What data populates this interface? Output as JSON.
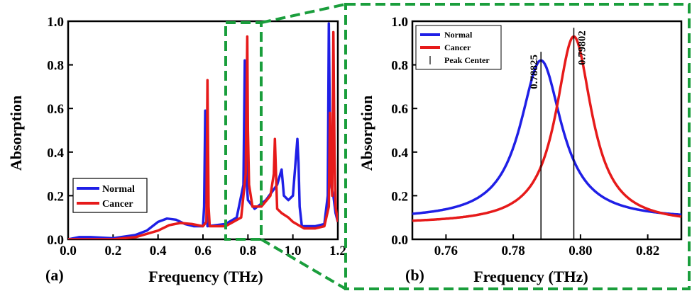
{
  "colors": {
    "normal": "#1f1fe6",
    "cancer": "#e61a1a",
    "frame": "#1a9e3c"
  },
  "chart_data": [
    {
      "panel_label": "(a)",
      "type": "line",
      "xlabel": "Frequency (THz)",
      "ylabel": "Absorption",
      "xlim": [
        0.0,
        1.2
      ],
      "ylim": [
        0.0,
        1.0
      ],
      "xticks": [
        "0.0",
        "0.2",
        "0.4",
        "0.6",
        "0.8",
        "1.0",
        "1.2"
      ],
      "yticks": [
        "0.0",
        "0.2",
        "0.4",
        "0.6",
        "0.8",
        "1.0"
      ],
      "legend": {
        "position": "lower-left",
        "entries": [
          "Normal",
          "Cancer"
        ]
      },
      "series": [
        {
          "name": "Normal",
          "x": [
            0.0,
            0.05,
            0.1,
            0.2,
            0.3,
            0.35,
            0.4,
            0.44,
            0.48,
            0.52,
            0.56,
            0.6,
            0.605,
            0.61,
            0.615,
            0.62,
            0.7,
            0.75,
            0.78,
            0.786,
            0.79,
            0.795,
            0.8,
            0.83,
            0.88,
            0.93,
            0.95,
            0.96,
            0.98,
            1.0,
            1.02,
            1.025,
            1.03,
            1.04,
            1.06,
            1.1,
            1.14,
            1.155,
            1.16,
            1.165,
            1.17,
            1.18,
            1.19,
            1.2
          ],
          "y": [
            0.0,
            0.01,
            0.01,
            0.005,
            0.02,
            0.04,
            0.08,
            0.095,
            0.09,
            0.07,
            0.06,
            0.06,
            0.15,
            0.59,
            0.2,
            0.06,
            0.07,
            0.1,
            0.25,
            0.82,
            0.5,
            0.25,
            0.18,
            0.14,
            0.18,
            0.25,
            0.32,
            0.2,
            0.18,
            0.2,
            0.46,
            0.35,
            0.15,
            0.06,
            0.06,
            0.06,
            0.07,
            0.2,
            0.99,
            0.5,
            0.25,
            0.2,
            0.12,
            0.08
          ]
        },
        {
          "name": "Cancer",
          "x": [
            0.0,
            0.1,
            0.2,
            0.3,
            0.4,
            0.45,
            0.5,
            0.55,
            0.6,
            0.615,
            0.62,
            0.625,
            0.63,
            0.7,
            0.77,
            0.79,
            0.797,
            0.8,
            0.805,
            0.82,
            0.86,
            0.9,
            0.915,
            0.92,
            0.925,
            0.93,
            0.95,
            0.98,
            1.0,
            1.05,
            1.1,
            1.14,
            1.16,
            1.165,
            1.17,
            1.175,
            1.18,
            1.185,
            1.19,
            1.2
          ],
          "y": [
            0.0,
            0.0,
            0.0,
            0.01,
            0.04,
            0.065,
            0.075,
            0.07,
            0.06,
            0.08,
            0.73,
            0.15,
            0.06,
            0.06,
            0.1,
            0.3,
            0.93,
            0.5,
            0.25,
            0.15,
            0.15,
            0.2,
            0.3,
            0.46,
            0.3,
            0.14,
            0.12,
            0.1,
            0.08,
            0.05,
            0.05,
            0.06,
            0.15,
            0.58,
            0.3,
            0.2,
            0.95,
            0.4,
            0.15,
            0.08
          ]
        }
      ],
      "highlight_range": [
        0.73,
        0.865
      ]
    },
    {
      "panel_label": "(b)",
      "type": "line",
      "xlabel": "Frequency (THz)",
      "ylabel": "Absorption",
      "xlim": [
        0.75,
        0.83
      ],
      "ylim": [
        0.0,
        1.0
      ],
      "xticks": [
        "0.76",
        "0.78",
        "0.80",
        "0.82"
      ],
      "yticks": [
        "0.0",
        "0.2",
        "0.4",
        "0.6",
        "0.8",
        "1.0"
      ],
      "legend": {
        "position": "top-left",
        "entries": [
          "Normal",
          "Cancer",
          "Peak Center"
        ]
      },
      "series": [
        {
          "name": "Normal",
          "peak_x": 0.78825,
          "peak_y": 0.82,
          "half_width": 0.0075,
          "baseline": 0.09
        },
        {
          "name": "Cancer",
          "peak_x": 0.79802,
          "peak_y": 0.93,
          "half_width": 0.0065,
          "baseline": 0.07
        }
      ],
      "annotations": [
        {
          "text": "0.78825",
          "x": 0.78825,
          "line_top_y": 0.86
        },
        {
          "text": "0.79802",
          "x": 0.79802,
          "line_top_y": 0.97
        }
      ]
    }
  ]
}
